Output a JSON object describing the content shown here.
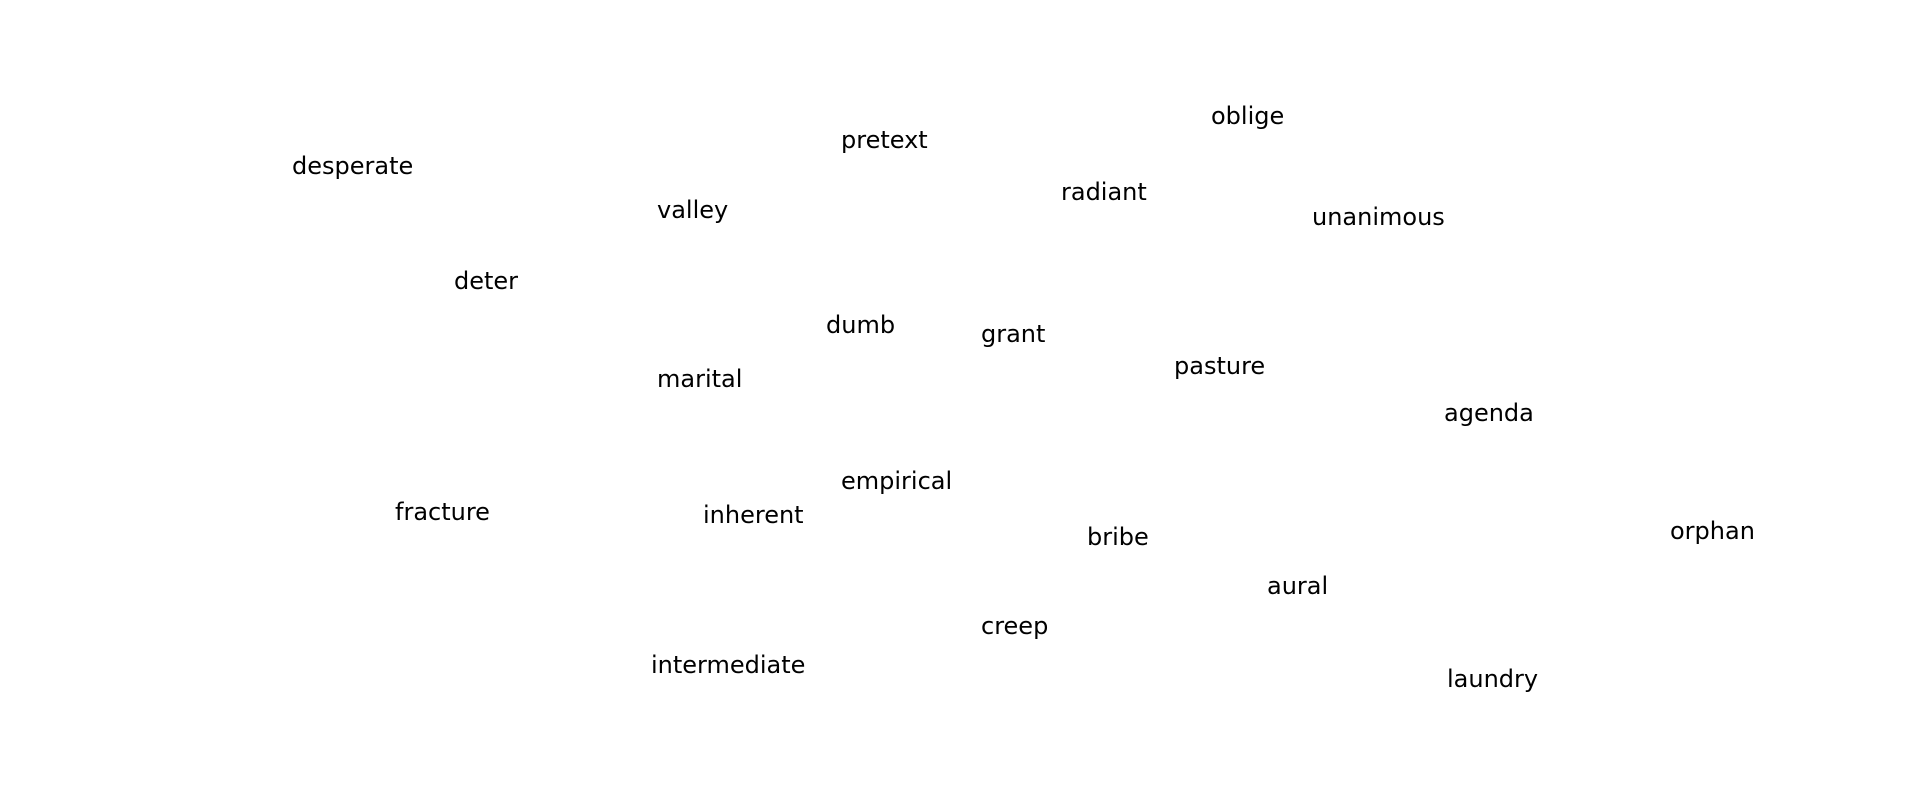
{
  "words": [
    "desperate",
    "pretext",
    "oblige",
    "valley",
    "radiant",
    "unanimous",
    "deter",
    "dumb",
    "grant",
    "pasture",
    "marital",
    "agenda",
    "empirical",
    "fracture",
    "inherent",
    "bribe",
    "orphan",
    "aural",
    "creep",
    "intermediate",
    "laundry"
  ],
  "colors": {
    "background": "#ffffff",
    "text": "#000000"
  }
}
